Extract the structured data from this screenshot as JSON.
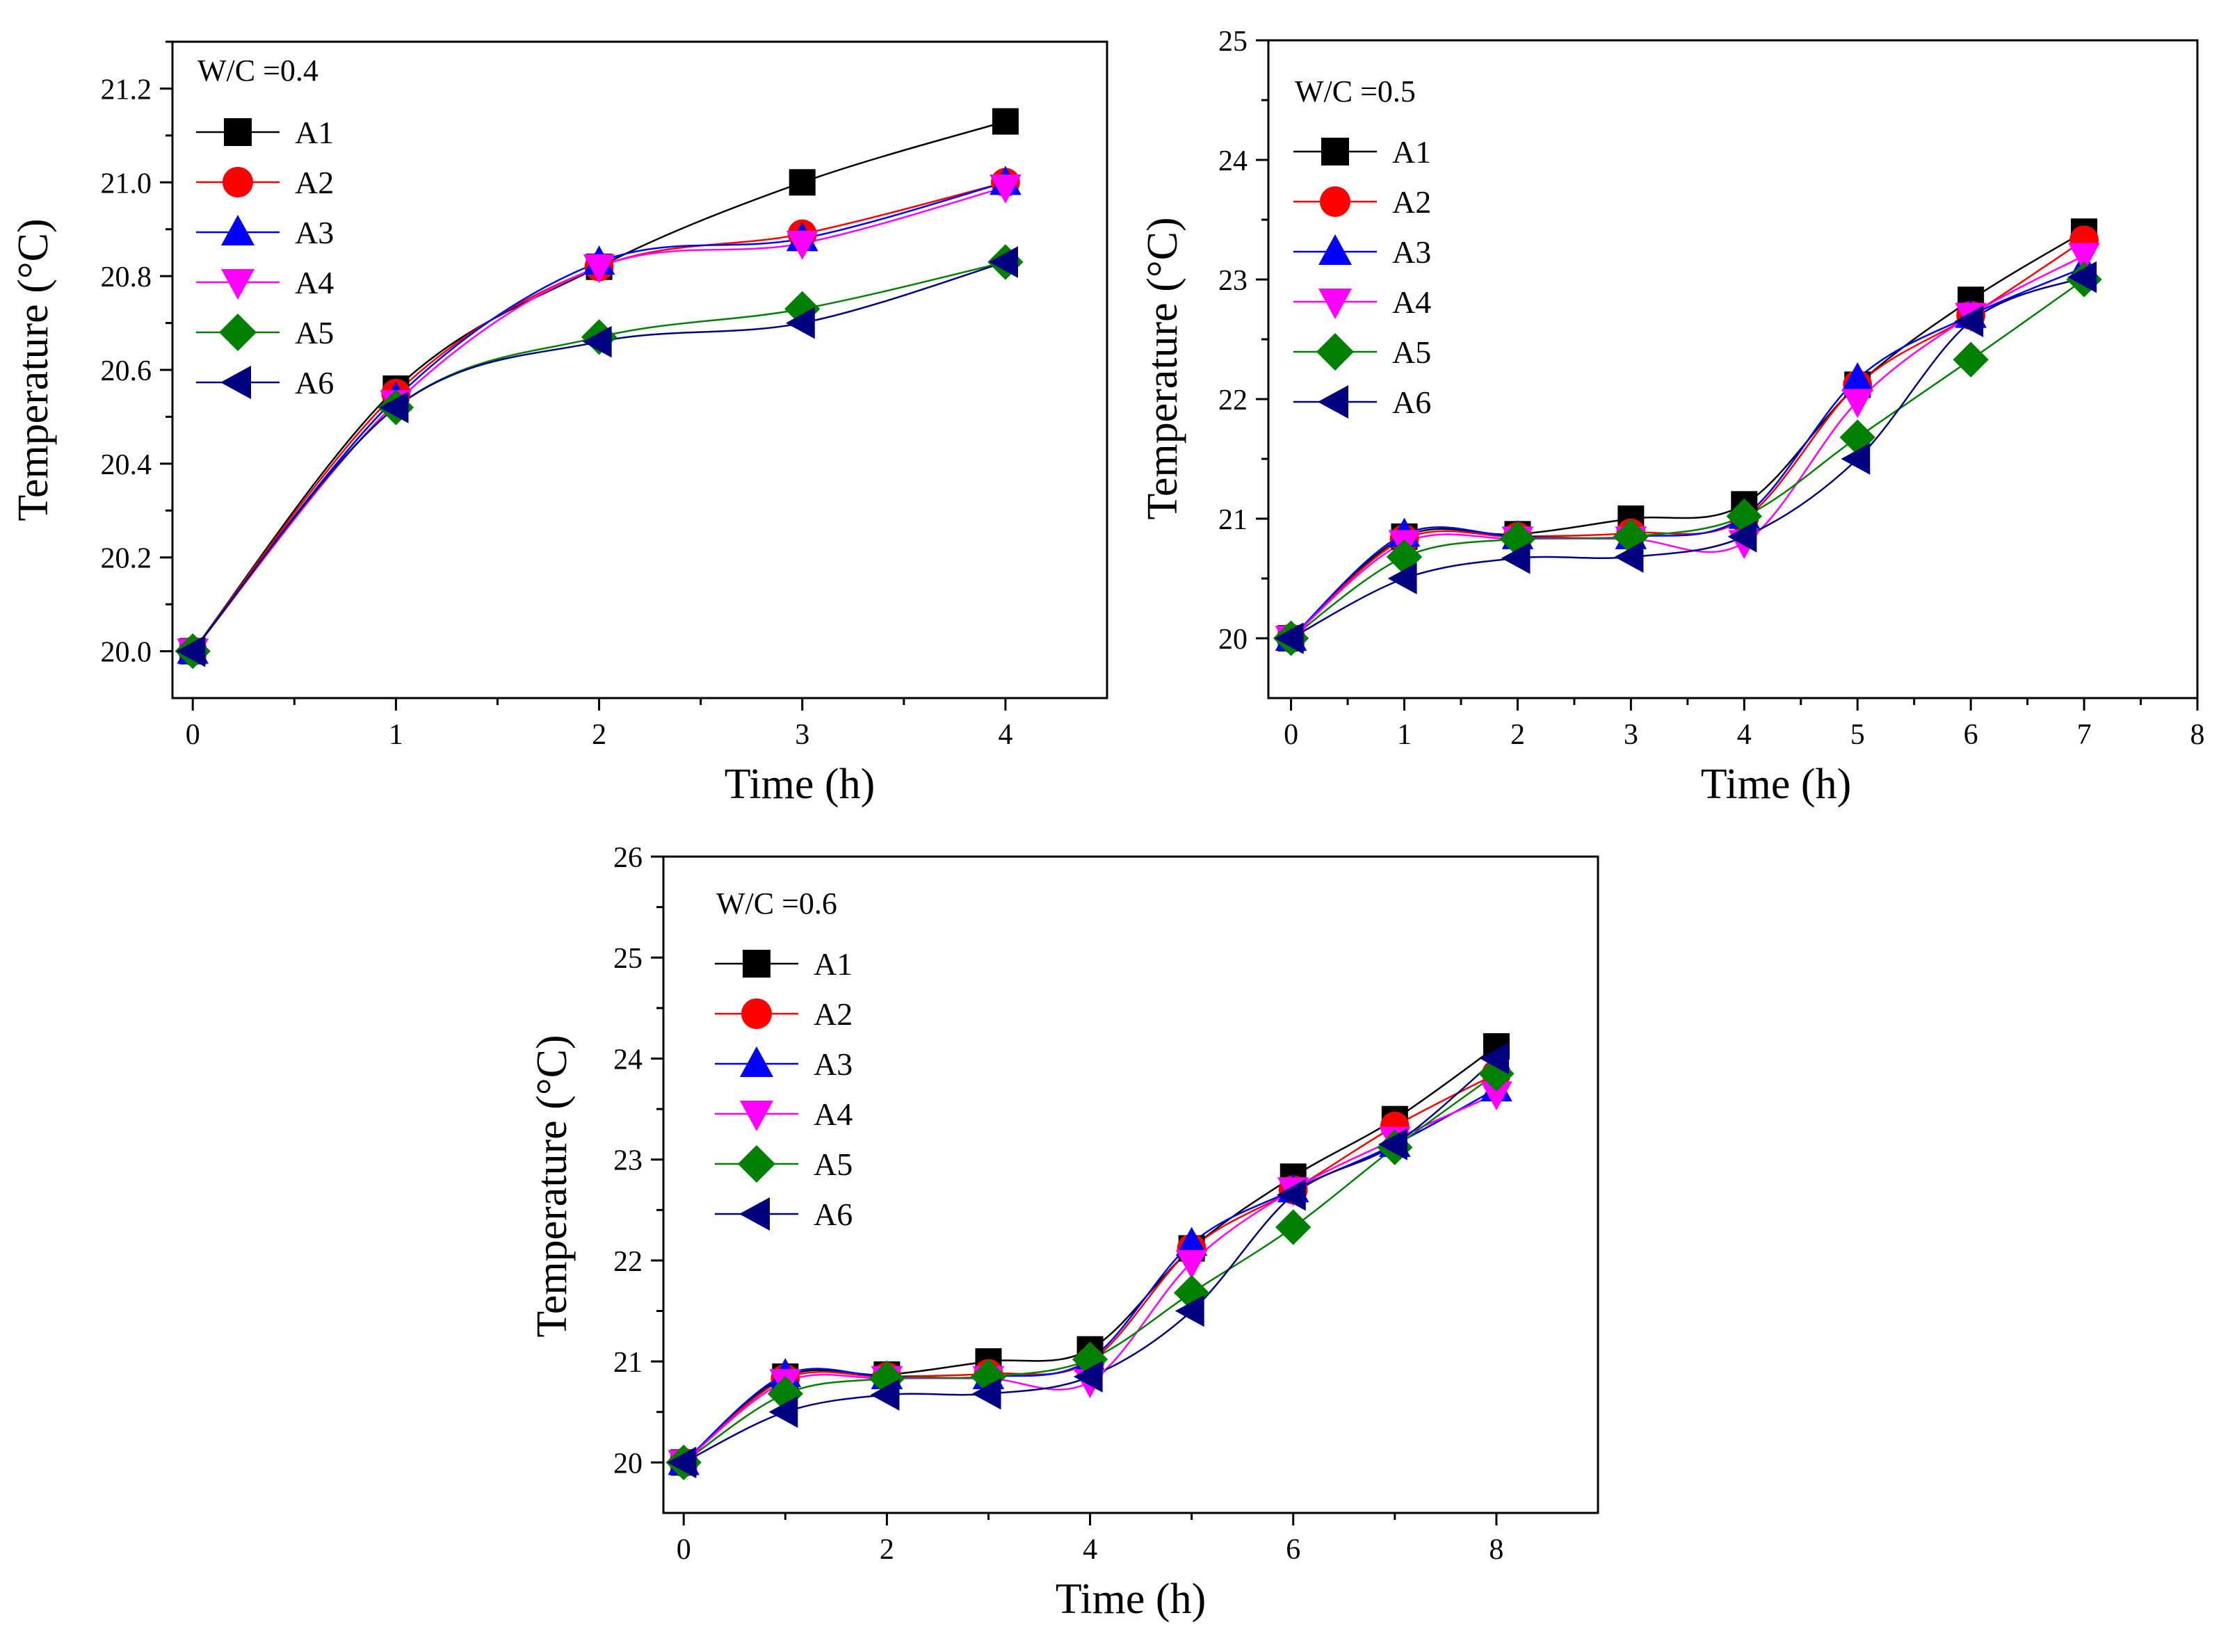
{
  "chart_data": [
    {
      "type": "line",
      "annotation": "W/C =0.4",
      "xlabel": "Time (h)",
      "ylabel": "Temperature (°C)",
      "xlim": [
        -0.1,
        4.5
      ],
      "ylim": [
        19.9,
        21.3
      ],
      "xticks": [
        0,
        1,
        2,
        3,
        4
      ],
      "xtick_labels": [
        "0",
        "1",
        "2",
        "3",
        "4"
      ],
      "yticks": [
        20.0,
        20.2,
        20.4,
        20.6,
        20.8,
        21.0,
        21.2
      ],
      "ytick_labels": [
        "20.0",
        "20.2",
        "20.4",
        "20.6",
        "20.8",
        "21.0",
        "21.2"
      ],
      "grid": false,
      "legend": "top-left",
      "x": [
        0,
        1,
        2,
        3,
        4
      ],
      "series": [
        {
          "name": "A1",
          "marker": "square",
          "color": "#000000",
          "values": [
            20.0,
            20.56,
            20.82,
            21.0,
            21.13
          ]
        },
        {
          "name": "A2",
          "marker": "circle",
          "color": "#ff0000",
          "values": [
            20.0,
            20.55,
            20.82,
            20.89,
            21.0
          ]
        },
        {
          "name": "A3",
          "marker": "triangle-up",
          "color": "#0000ff",
          "values": [
            20.0,
            20.54,
            20.83,
            20.88,
            21.0
          ]
        },
        {
          "name": "A4",
          "marker": "triangle-down",
          "color": "#ff00ff",
          "values": [
            20.0,
            20.53,
            20.82,
            20.87,
            20.99
          ]
        },
        {
          "name": "A5",
          "marker": "diamond",
          "color": "#008000",
          "values": [
            20.0,
            20.52,
            20.67,
            20.73,
            20.83
          ]
        },
        {
          "name": "A6",
          "marker": "triangle-left",
          "color": "#000080",
          "values": [
            20.0,
            20.52,
            20.66,
            20.7,
            20.83
          ]
        }
      ]
    },
    {
      "type": "line",
      "annotation": "W/C =0.5",
      "xlabel": "Time (h)",
      "ylabel": "Temperature (°C)",
      "xlim": [
        -0.2,
        8
      ],
      "ylim": [
        19.5,
        25
      ],
      "xticks": [
        0,
        1,
        2,
        3,
        4,
        5,
        6,
        7,
        8
      ],
      "xtick_labels": [
        "0",
        "1",
        "2",
        "3",
        "4",
        "5",
        "6",
        "7",
        "8"
      ],
      "yticks": [
        20,
        21,
        22,
        23,
        24,
        25
      ],
      "ytick_labels": [
        "20",
        "21",
        "22",
        "23",
        "24",
        "25"
      ],
      "grid": false,
      "legend": "top-left",
      "x": [
        0,
        1,
        2,
        3,
        4,
        5,
        6,
        7
      ],
      "series": [
        {
          "name": "A1",
          "marker": "square",
          "color": "#000000",
          "values": [
            20.0,
            20.85,
            20.87,
            21.0,
            21.12,
            22.12,
            22.83,
            23.4
          ]
        },
        {
          "name": "A2",
          "marker": "circle",
          "color": "#ff0000",
          "values": [
            20.0,
            20.83,
            20.85,
            20.88,
            21.0,
            22.12,
            22.7,
            23.33
          ]
        },
        {
          "name": "A3",
          "marker": "triangle-up",
          "color": "#0000ff",
          "values": [
            20.0,
            20.87,
            20.85,
            20.85,
            21.02,
            22.17,
            22.7,
            23.1
          ]
        },
        {
          "name": "A4",
          "marker": "triangle-down",
          "color": "#ff00ff",
          "values": [
            20.0,
            20.8,
            20.83,
            20.83,
            20.8,
            21.98,
            22.7,
            23.2
          ]
        },
        {
          "name": "A5",
          "marker": "diamond",
          "color": "#008000",
          "values": [
            20.0,
            20.68,
            20.83,
            20.85,
            21.02,
            21.68,
            22.33,
            23.0
          ]
        },
        {
          "name": "A6",
          "marker": "triangle-left",
          "color": "#000080",
          "values": [
            20.0,
            20.5,
            20.67,
            20.68,
            20.85,
            21.5,
            22.65,
            23.02
          ]
        }
      ]
    },
    {
      "type": "line",
      "annotation": "W/C =0.6",
      "xlabel": "Time (h)",
      "ylabel": "Temperature (°C)",
      "xlim": [
        -0.2,
        9
      ],
      "ylim": [
        19.5,
        26
      ],
      "xticks": [
        0,
        2,
        4,
        6,
        8
      ],
      "xtick_labels": [
        "0",
        "2",
        "4",
        "6",
        "8"
      ],
      "yticks": [
        20,
        21,
        22,
        23,
        24,
        25,
        26
      ],
      "ytick_labels": [
        "20",
        "21",
        "22",
        "23",
        "24",
        "25",
        "26"
      ],
      "grid": false,
      "legend": "top-left",
      "x": [
        0,
        1,
        2,
        3,
        4,
        5,
        6,
        7,
        8
      ],
      "series": [
        {
          "name": "A1",
          "marker": "square",
          "color": "#000000",
          "values": [
            20.0,
            20.85,
            20.87,
            21.0,
            21.12,
            22.12,
            22.83,
            23.4,
            24.12
          ]
        },
        {
          "name": "A2",
          "marker": "circle",
          "color": "#ff0000",
          "values": [
            20.0,
            20.83,
            20.85,
            20.88,
            21.0,
            22.12,
            22.7,
            23.33,
            23.85
          ]
        },
        {
          "name": "A3",
          "marker": "triangle-up",
          "color": "#0000ff",
          "values": [
            20.0,
            20.87,
            20.85,
            20.85,
            21.02,
            22.17,
            22.7,
            23.15,
            23.7
          ]
        },
        {
          "name": "A4",
          "marker": "triangle-down",
          "color": "#ff00ff",
          "values": [
            20.0,
            20.8,
            20.83,
            20.83,
            20.8,
            21.98,
            22.7,
            23.2,
            23.65
          ]
        },
        {
          "name": "A5",
          "marker": "diamond",
          "color": "#008000",
          "values": [
            20.0,
            20.68,
            20.83,
            20.85,
            21.02,
            21.68,
            22.33,
            23.12,
            23.85
          ]
        },
        {
          "name": "A6",
          "marker": "triangle-left",
          "color": "#000080",
          "values": [
            20.0,
            20.5,
            20.67,
            20.68,
            20.85,
            21.5,
            22.65,
            23.15,
            24.0
          ]
        }
      ]
    }
  ]
}
